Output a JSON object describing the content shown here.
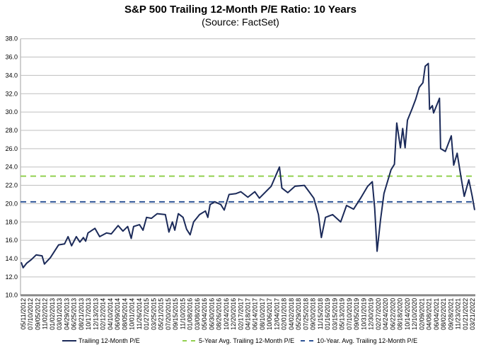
{
  "chart_data": {
    "type": "line",
    "title": "S&P 500 Trailing 12-Month P/E Ratio: 10 Years",
    "subtitle": "(Source: FactSet)",
    "xlabel": "",
    "ylabel": "",
    "ylim": [
      10,
      38
    ],
    "yticks": [
      "10.0",
      "12.0",
      "14.0",
      "16.0",
      "18.0",
      "20.0",
      "22.0",
      "24.0",
      "26.0",
      "28.0",
      "30.0",
      "32.0",
      "34.0",
      "36.0",
      "38.0"
    ],
    "xticks": [
      "05/11/2012",
      "07/10/2012",
      "09/05/2012",
      "11/02/2012",
      "01/02/2013",
      "03/01/2013",
      "04/29/2013",
      "06/25/2013",
      "08/21/2013",
      "10/17/2013",
      "12/13/2013",
      "02/12/2014",
      "04/10/2014",
      "06/09/2014",
      "08/05/2014",
      "10/01/2014",
      "11/26/2014",
      "01/27/2015",
      "03/25/2015",
      "05/21/2015",
      "07/20/2015",
      "09/15/2015",
      "11/10/2015",
      "01/08/2016",
      "03/08/2016",
      "05/04/2016",
      "06/30/2016",
      "08/26/2016",
      "10/24/2016",
      "12/20/2016",
      "02/17/2017",
      "04/18/2017",
      "06/14/2017",
      "08/10/2017",
      "10/06/2017",
      "12/04/2017",
      "02/01/2018",
      "04/02/2018",
      "05/29/2018",
      "07/25/2018",
      "09/20/2018",
      "11/15/2018",
      "01/16/2019",
      "03/15/2019",
      "05/13/2019",
      "07/10/2019",
      "09/05/2019",
      "10/31/2019",
      "12/30/2019",
      "02/27/2020",
      "04/24/2020",
      "06/22/2020",
      "08/18/2020",
      "10/14/2020",
      "12/10/2020",
      "02/09/2021",
      "04/08/2021",
      "06/04/2021",
      "08/02/2021",
      "09/28/2021",
      "11/23/2021",
      "01/21/2022",
      "03/21/2022"
    ],
    "grid": true,
    "legend_position": "bottom",
    "series": [
      {
        "name": "Trailing 12-Month P/E",
        "color": "#1b2a59",
        "style": "solid",
        "points": [
          [
            "2012-05-11",
            13.6
          ],
          [
            "2012-05-26",
            13.0
          ],
          [
            "2012-06-24",
            13.5
          ],
          [
            "2012-07-31",
            13.9
          ],
          [
            "2012-09-07",
            14.4
          ],
          [
            "2012-10-24",
            14.3
          ],
          [
            "2012-11-12",
            13.4
          ],
          [
            "2012-12-29",
            14.1
          ],
          [
            "2013-02-05",
            14.9
          ],
          [
            "2013-03-05",
            15.5
          ],
          [
            "2013-04-21",
            15.6
          ],
          [
            "2013-05-19",
            16.4
          ],
          [
            "2013-06-16",
            15.4
          ],
          [
            "2013-07-24",
            16.4
          ],
          [
            "2013-08-21",
            15.8
          ],
          [
            "2013-09-18",
            16.3
          ],
          [
            "2013-10-06",
            15.9
          ],
          [
            "2013-10-25",
            16.8
          ],
          [
            "2013-12-19",
            17.3
          ],
          [
            "2014-01-26",
            16.4
          ],
          [
            "2014-03-22",
            16.8
          ],
          [
            "2014-04-28",
            16.7
          ],
          [
            "2014-06-22",
            17.6
          ],
          [
            "2014-07-30",
            17.0
          ],
          [
            "2014-09-06",
            17.5
          ],
          [
            "2014-10-04",
            16.2
          ],
          [
            "2014-10-23",
            17.5
          ],
          [
            "2014-12-09",
            17.7
          ],
          [
            "2015-01-06",
            17.1
          ],
          [
            "2015-02-03",
            18.5
          ],
          [
            "2015-03-14",
            18.4
          ],
          [
            "2015-04-29",
            18.9
          ],
          [
            "2015-07-03",
            18.8
          ],
          [
            "2015-07-31",
            16.9
          ],
          [
            "2015-08-28",
            18.0
          ],
          [
            "2015-09-16",
            17.1
          ],
          [
            "2015-10-14",
            18.9
          ],
          [
            "2015-11-21",
            18.5
          ],
          [
            "2015-12-19",
            17.2
          ],
          [
            "2016-01-16",
            16.6
          ],
          [
            "2016-02-13",
            18.0
          ],
          [
            "2016-03-31",
            18.8
          ],
          [
            "2016-05-17",
            19.2
          ],
          [
            "2016-06-05",
            18.5
          ],
          [
            "2016-06-23",
            19.9
          ],
          [
            "2016-07-31",
            20.2
          ],
          [
            "2016-09-16",
            19.9
          ],
          [
            "2016-10-14",
            19.3
          ],
          [
            "2016-11-21",
            21.0
          ],
          [
            "2017-01-16",
            21.1
          ],
          [
            "2017-02-23",
            21.3
          ],
          [
            "2017-04-20",
            20.7
          ],
          [
            "2017-06-14",
            21.3
          ],
          [
            "2017-07-21",
            20.6
          ],
          [
            "2017-10-23",
            21.9
          ],
          [
            "2017-12-28",
            24.0
          ],
          [
            "2018-01-16",
            21.7
          ],
          [
            "2018-03-04",
            21.2
          ],
          [
            "2018-04-30",
            21.9
          ],
          [
            "2018-07-14",
            22.0
          ],
          [
            "2018-08-21",
            21.3
          ],
          [
            "2018-09-27",
            20.6
          ],
          [
            "2018-11-03",
            18.8
          ],
          [
            "2018-11-26",
            16.3
          ],
          [
            "2018-12-29",
            18.5
          ],
          [
            "2019-02-24",
            18.8
          ],
          [
            "2019-04-29",
            18.0
          ],
          [
            "2019-06-15",
            19.8
          ],
          [
            "2019-08-10",
            19.4
          ],
          [
            "2019-10-05",
            20.6
          ],
          [
            "2019-11-30",
            21.9
          ],
          [
            "2020-01-06",
            22.4
          ],
          [
            "2020-01-25",
            19.5
          ],
          [
            "2020-02-13",
            14.8
          ],
          [
            "2020-03-11",
            18.2
          ],
          [
            "2020-04-08",
            21.1
          ],
          [
            "2020-06-03",
            23.7
          ],
          [
            "2020-06-30",
            24.3
          ],
          [
            "2020-07-19",
            28.8
          ],
          [
            "2020-08-17",
            26.1
          ],
          [
            "2020-09-04",
            28.2
          ],
          [
            "2020-09-23",
            26.1
          ],
          [
            "2020-10-12",
            29.1
          ],
          [
            "2020-11-19",
            30.4
          ],
          [
            "2020-12-17",
            31.4
          ],
          [
            "2021-01-14",
            32.7
          ],
          [
            "2021-02-12",
            33.2
          ],
          [
            "2021-03-02",
            35.0
          ],
          [
            "2021-03-27",
            35.3
          ],
          [
            "2021-04-06",
            30.3
          ],
          [
            "2021-04-28",
            30.7
          ],
          [
            "2021-05-08",
            29.9
          ],
          [
            "2021-06-24",
            31.5
          ],
          [
            "2021-07-03",
            26.0
          ],
          [
            "2021-08-10",
            25.7
          ],
          [
            "2021-09-26",
            27.4
          ],
          [
            "2021-10-15",
            24.2
          ],
          [
            "2021-11-12",
            25.5
          ],
          [
            "2021-12-10",
            23.1
          ],
          [
            "2022-01-07",
            20.8
          ],
          [
            "2022-02-13",
            22.6
          ],
          [
            "2022-03-12",
            20.8
          ],
          [
            "2022-03-31",
            19.3
          ]
        ]
      },
      {
        "name": "5-Year Avg. Trailing 12-Month P/E",
        "color": "#92d050",
        "style": "dashed",
        "value": 23.0
      },
      {
        "name": "10-Year. Avg. Trailing 12-Month P/E",
        "color": "#2f5597",
        "style": "dashed",
        "value": 20.2
      }
    ]
  }
}
